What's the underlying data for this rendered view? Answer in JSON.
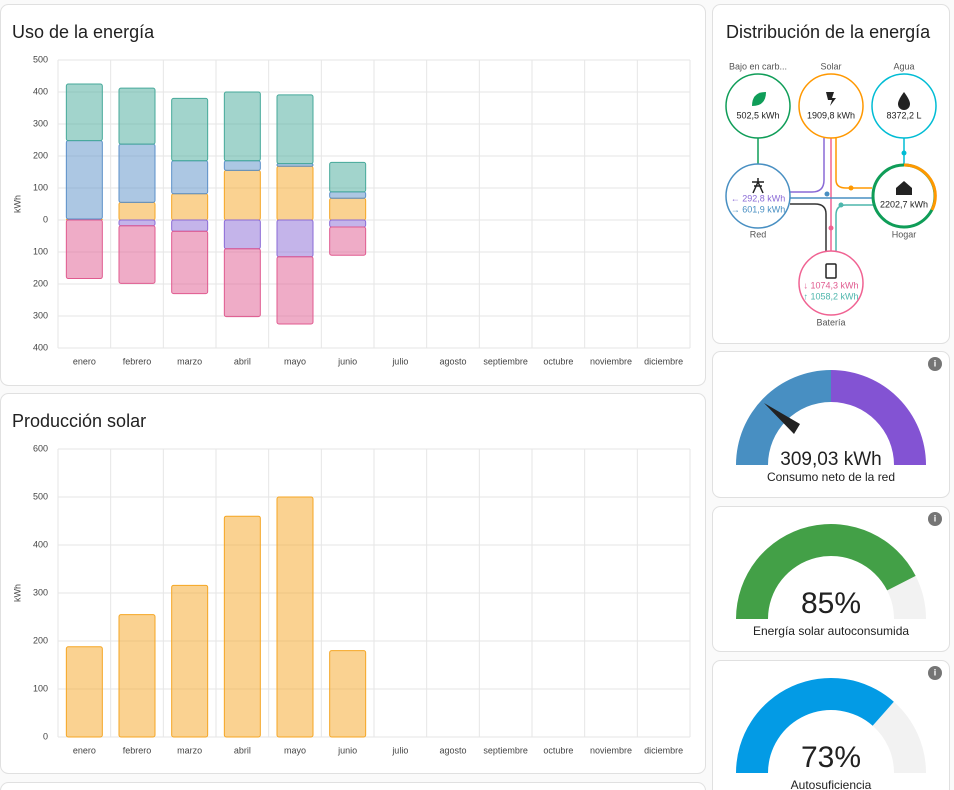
{
  "chart_data": [
    {
      "type": "bar",
      "stacked": true,
      "title": "Uso de la energía",
      "ylabel": "kWh",
      "categories": [
        "enero",
        "febrero",
        "marzo",
        "abril",
        "mayo",
        "junio",
        "julio",
        "agosto",
        "septiembre",
        "octubre",
        "noviembre",
        "diciembre"
      ],
      "series": [
        {
          "color": "#f5a623",
          "values": [
            3,
            55,
            82,
            155,
            168,
            68,
            null,
            null,
            null,
            null,
            null,
            null
          ]
        },
        {
          "color": "#5a8fc8",
          "values": [
            245,
            182,
            103,
            30,
            8,
            20,
            null,
            null,
            null,
            null,
            null,
            null
          ]
        },
        {
          "color": "#46a99a",
          "values": [
            177,
            175,
            195,
            215,
            215,
            92,
            null,
            null,
            null,
            null,
            null,
            null
          ]
        },
        {
          "color": "#8a6ad6",
          "values": [
            0,
            -18,
            -35,
            -90,
            -115,
            -22,
            null,
            null,
            null,
            null,
            null,
            null
          ]
        },
        {
          "color": "#e05a8f",
          "values": [
            -183,
            -180,
            -195,
            -212,
            -210,
            -88,
            null,
            null,
            null,
            null,
            null,
            null
          ]
        }
      ],
      "ylim": [
        -400,
        500
      ],
      "yticks": [
        {
          "value": -400,
          "label": "400"
        },
        {
          "value": -300,
          "label": "300"
        },
        {
          "value": -200,
          "label": "200"
        },
        {
          "value": -100,
          "label": "100"
        },
        0,
        100,
        200,
        300,
        400,
        500
      ],
      "grid": true
    },
    {
      "type": "bar",
      "title": "Producción solar",
      "ylabel": "kWh",
      "categories": [
        "enero",
        "febrero",
        "marzo",
        "abril",
        "mayo",
        "junio",
        "julio",
        "agosto",
        "septiembre",
        "octubre",
        "noviembre",
        "diciembre"
      ],
      "series": [
        {
          "color": "#f5a623",
          "values": [
            188,
            255,
            316,
            460,
            500,
            180,
            null,
            null,
            null,
            null,
            null,
            null
          ]
        }
      ],
      "ylim": [
        0,
        600
      ],
      "yticks": [
        0,
        100,
        200,
        300,
        400,
        500,
        600
      ],
      "grid": true
    }
  ],
  "distribution": {
    "title": "Distribución de la energía",
    "low_carbon": {
      "label": "Bajo en carb...",
      "value": "502,5 kWh"
    },
    "solar": {
      "label": "Solar",
      "value": "1909,8 kWh"
    },
    "water": {
      "label": "Agua",
      "value": "8372,2 L"
    },
    "grid": {
      "label": "Red",
      "in": "← 292,8 kWh",
      "out": "→ 601,9 kWh"
    },
    "home": {
      "label": "Hogar",
      "value": "2202,7 kWh"
    },
    "battery": {
      "label": "Batería",
      "in": "↓ 1074,3 kWh",
      "out": "↑ 1058,2 kWh"
    }
  },
  "gauges": [
    {
      "value_label": "309,03 kWh",
      "label": "Consumo neto de la red"
    },
    {
      "value": 85,
      "value_label": "85%",
      "label": "Energía solar autoconsumida",
      "color": "#43a047"
    },
    {
      "value": 73,
      "value_label": "73%",
      "label": "Autosuficiencia",
      "color": "#039be5"
    }
  ]
}
